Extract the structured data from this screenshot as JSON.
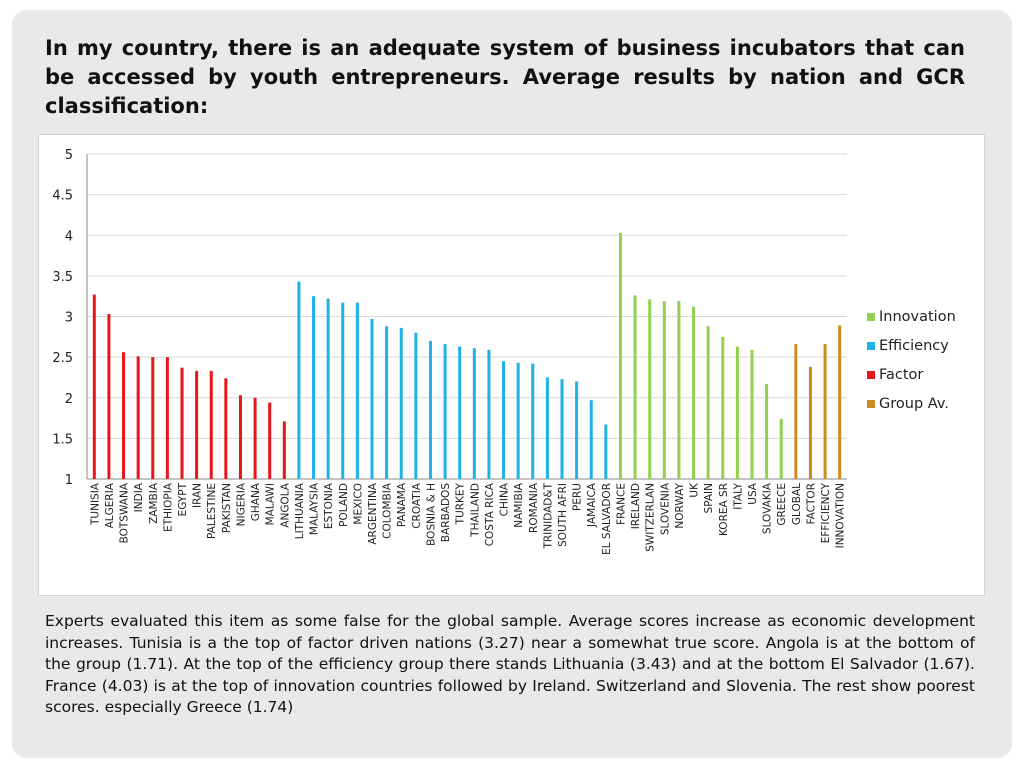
{
  "slide": {
    "title": "In my country, there is an adequate system of business incubators that can be accessed by youth entrepreneurs. Average results by nation and GCR classification:",
    "body": "Experts evaluated this item as some false for the global sample. Average scores increase as economic development increases. Tunisia is a the top of factor driven nations (3.27) near a somewhat true score. Angola is at the bottom of the group (1.71). At the top of the efficiency group there stands Lithuania (3.43) and at the bottom  El Salvador (1.67). France (4.03) is at the top of innovation countries followed by Ireland.  Switzerland and Slovenia. The rest show poorest scores. especially Greece (1.74)"
  },
  "chart_data": {
    "type": "bar",
    "ylim": [
      1,
      5
    ],
    "yticks": [
      "1",
      "1.5",
      "2",
      "2.5",
      "3",
      "3.5",
      "4",
      "4.5",
      "5"
    ],
    "grid": true,
    "legend_position": "right",
    "legend": [
      {
        "name": "Innovation",
        "color": "#92d050"
      },
      {
        "name": "Efficiency",
        "color": "#1fb2e6"
      },
      {
        "name": "Factor",
        "color": "#e8161c"
      },
      {
        "name": "Group Av.",
        "color": "#cc8a21"
      }
    ],
    "groups": [
      {
        "name": "Factor",
        "color": "#e8161c",
        "categories": [
          "TUNISIA",
          "ALGERIA",
          "BOTSWANA",
          "INDIA",
          "ZAMBIA",
          "ETHIOPIA",
          "EGYPT",
          "IRAN",
          "PALESTINE",
          "PAKISTAN",
          "NIGERIA",
          "GHANA",
          "MALAWI",
          "ANGOLA"
        ],
        "values": [
          3.27,
          3.03,
          2.56,
          2.51,
          2.5,
          2.5,
          2.37,
          2.33,
          2.33,
          2.24,
          2.03,
          2.0,
          1.94,
          1.71
        ]
      },
      {
        "name": "Efficiency",
        "color": "#1fb2e6",
        "categories": [
          "LITHUANIA",
          "MALAYSIA",
          "ESTONIA",
          "POLAND",
          "MEXICO",
          "ARGENTINA",
          "COLOMBIA",
          "PANAMA",
          "CROATIA",
          "BOSNIA & H",
          "BARBADOS",
          "TURKEY",
          "THAILAND",
          "COSTA RICA",
          "CHINA",
          "NAMIBIA",
          "ROMANIA",
          "TRINIDAD&T",
          "SOUTH AFRI",
          "PERU",
          "JAMAICA",
          "EL SALVADOR"
        ],
        "values": [
          3.43,
          3.25,
          3.22,
          3.17,
          3.17,
          2.97,
          2.88,
          2.86,
          2.8,
          2.7,
          2.66,
          2.63,
          2.61,
          2.59,
          2.45,
          2.43,
          2.42,
          2.25,
          2.23,
          2.2,
          1.97,
          1.67
        ]
      },
      {
        "name": "Innovation",
        "color": "#92d050",
        "categories": [
          "FRANCE",
          "IRELAND",
          "SWITZERLAN",
          "SLOVENIA",
          "NORWAY",
          "UK",
          "SPAIN",
          "KOREA SR",
          "ITALY",
          "USA",
          "SLOVAKIA",
          "GREECE"
        ],
        "values": [
          4.03,
          3.26,
          3.21,
          3.19,
          3.19,
          3.12,
          2.88,
          2.75,
          2.63,
          2.59,
          2.17,
          1.74
        ]
      },
      {
        "name": "Group Av.",
        "color": "#cc8a21",
        "categories": [
          "GLOBAL",
          "FACTOR",
          "EFFICIENCY",
          "INNOVATION"
        ],
        "values": [
          2.66,
          2.38,
          2.66,
          2.89
        ]
      }
    ]
  }
}
